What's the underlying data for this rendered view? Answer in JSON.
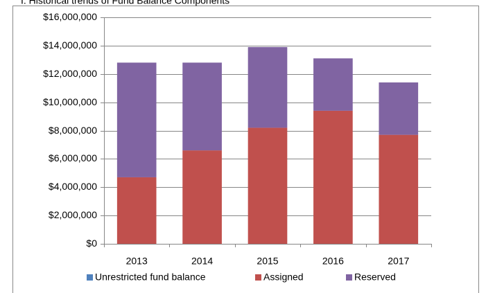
{
  "chart_data": {
    "type": "stacked_bar",
    "title": "I. Historical trends of Fund Balance Components",
    "categories": [
      "2013",
      "2014",
      "2015",
      "2016",
      "2017"
    ],
    "series": [
      {
        "name": "Unrestricted fund balance",
        "color": "#4f81bd",
        "values": [
          0,
          0,
          0,
          0,
          0
        ]
      },
      {
        "name": "Assigned",
        "color": "#c0504d",
        "values": [
          4700000,
          6600000,
          8200000,
          9400000,
          7700000
        ]
      },
      {
        "name": "Reserved",
        "color": "#8064a2",
        "values": [
          8100000,
          6200000,
          5700000,
          3700000,
          3700000
        ]
      }
    ],
    "ylim": [
      0,
      16000000
    ],
    "yticks": [
      {
        "value": 0,
        "label": "$0"
      },
      {
        "value": 2000000,
        "label": "$2,000,000"
      },
      {
        "value": 4000000,
        "label": "$4,000,000"
      },
      {
        "value": 6000000,
        "label": "$6,000,000"
      },
      {
        "value": 8000000,
        "label": "$8,000,000"
      },
      {
        "value": 10000000,
        "label": "$10,000,000"
      },
      {
        "value": 12000000,
        "label": "$12,000,000"
      },
      {
        "value": 14000000,
        "label": "$14,000,000"
      },
      {
        "value": 16000000,
        "label": "$16,000,000"
      }
    ],
    "grid": true,
    "legend": "bottom"
  }
}
